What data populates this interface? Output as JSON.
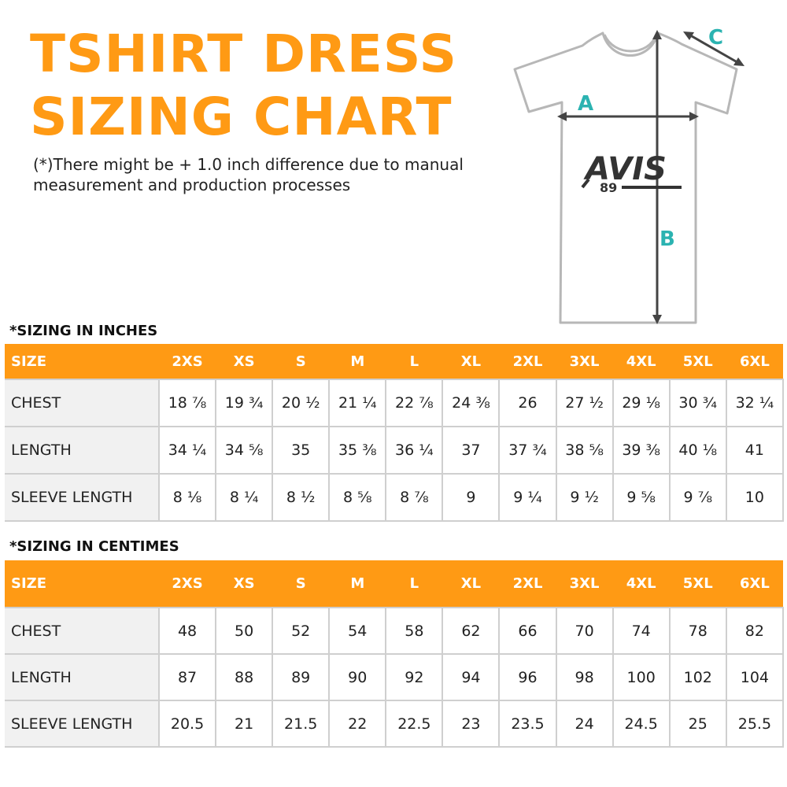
{
  "title": {
    "line1": "TSHIRT DRESS",
    "line2": "SIZING CHART"
  },
  "note": "(*)There might be + 1.0 inch difference due to manual measurement and production processes",
  "diagram": {
    "label_a": "A",
    "label_b": "B",
    "label_c": "C",
    "logo_text": "AVIS",
    "logo_number": "89",
    "accent_color": "#2bb3b1",
    "outline_color": "#b7b7b7"
  },
  "inches": {
    "section_title": "*SIZING IN INCHES",
    "header": [
      "SIZE",
      "2XS",
      "XS",
      "S",
      "M",
      "L",
      "XL",
      "2XL",
      "3XL",
      "4XL",
      "5XL",
      "6XL"
    ],
    "rows": [
      [
        "CHEST",
        "18 ⅞",
        "19 ¾",
        "20 ½",
        "21 ¼",
        "22 ⅞",
        "24 ⅜",
        "26",
        "27 ½",
        "29 ⅛",
        "30 ¾",
        "32 ¼"
      ],
      [
        "LENGTH",
        "34 ¼",
        "34 ⅝",
        "35",
        "35 ⅜",
        "36 ¼",
        "37",
        "37 ¾",
        "38 ⅝",
        "39 ⅜",
        "40 ⅛",
        "41"
      ],
      [
        "SLEEVE LENGTH",
        "8 ⅛",
        "8 ¼",
        "8 ½",
        "8 ⅝",
        "8 ⅞",
        "9",
        "9 ¼",
        "9 ½",
        "9 ⅝",
        "9 ⅞",
        "10"
      ]
    ]
  },
  "cm": {
    "section_title": "*SIZING IN CENTIMES",
    "header": [
      "SIZE",
      "2XS",
      "XS",
      "S",
      "M",
      "L",
      "XL",
      "2XL",
      "3XL",
      "4XL",
      "5XL",
      "6XL"
    ],
    "rows": [
      [
        "CHEST",
        "48",
        "50",
        "52",
        "54",
        "58",
        "62",
        "66",
        "70",
        "74",
        "78",
        "82"
      ],
      [
        "LENGTH",
        "87",
        "88",
        "89",
        "90",
        "92",
        "94",
        "96",
        "98",
        "100",
        "102",
        "104"
      ],
      [
        "SLEEVE LENGTH",
        "20.5",
        "21",
        "21.5",
        "22",
        "22.5",
        "23",
        "23.5",
        "24",
        "24.5",
        "25",
        "25.5"
      ]
    ]
  },
  "colors": {
    "brand_orange": "#ff9a14",
    "teal_labels": "#2bb3b1",
    "grid_gray": "#cfcfcf"
  }
}
